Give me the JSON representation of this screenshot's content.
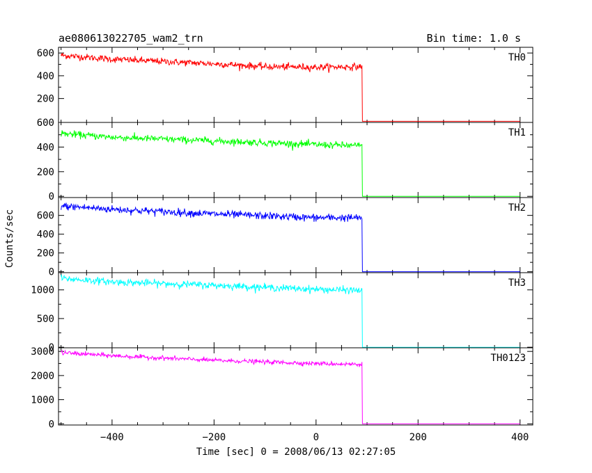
{
  "header": {
    "title": "ae080613022705_wam2_trn",
    "bin_time": "Bin time: 1.0 s"
  },
  "chart_data": {
    "type": "line",
    "xlabel": "Time [sec] 0 = 2008/06/13 02:27:05",
    "ylabel": "Counts/sec",
    "xlim": [
      -505,
      425
    ],
    "x_ticks": [
      -400,
      -200,
      0,
      200,
      400
    ],
    "x_tick_labels": [
      "−400",
      "−200",
      "0",
      "200",
      "400"
    ],
    "drop_time": 90,
    "x_start": -500,
    "x_end": 400,
    "panels": [
      {
        "label": "TH0",
        "color": "#ff0000",
        "ylim": [
          -10,
          650
        ],
        "ticks": [
          200,
          400,
          600
        ],
        "tick_labels": [
          "200",
          "400",
          "600"
        ],
        "trend": [
          [
            -500,
            580
          ],
          [
            -400,
            545
          ],
          [
            -200,
            505
          ],
          [
            -100,
            480
          ],
          [
            0,
            475
          ],
          [
            90,
            480
          ],
          [
            400,
            0
          ]
        ],
        "noise": 15
      },
      {
        "label": "TH1",
        "color": "#00ff00",
        "ylim": [
          -10,
          600
        ],
        "ticks": [
          0,
          200,
          400,
          600
        ],
        "tick_labels": [
          "0",
          "200",
          "400",
          "600"
        ],
        "trend": [
          [
            -500,
            510
          ],
          [
            -400,
            480
          ],
          [
            -200,
            450
          ],
          [
            0,
            420
          ],
          [
            90,
            410
          ],
          [
            400,
            0
          ]
        ],
        "noise": 14
      },
      {
        "label": "TH2",
        "color": "#0000ff",
        "ylim": [
          -10,
          790
        ],
        "ticks": [
          0,
          200,
          400,
          600
        ],
        "tick_labels": [
          "0",
          "200",
          "400",
          "600"
        ],
        "trend": [
          [
            -500,
            700
          ],
          [
            -400,
            665
          ],
          [
            -200,
            615
          ],
          [
            -100,
            595
          ],
          [
            0,
            575
          ],
          [
            90,
            575
          ],
          [
            400,
            0
          ]
        ],
        "noise": 20
      },
      {
        "label": "TH3",
        "color": "#00ffff",
        "ylim": [
          -10,
          1300
        ],
        "ticks": [
          0,
          500,
          1000
        ],
        "tick_labels": [
          "0",
          "500",
          "1000"
        ],
        "trend": [
          [
            -500,
            1200
          ],
          [
            -400,
            1140
          ],
          [
            -200,
            1080
          ],
          [
            0,
            1010
          ],
          [
            90,
            990
          ],
          [
            400,
            0
          ]
        ],
        "noise": 30
      },
      {
        "label": "TH0123",
        "color": "#ff00ff",
        "ylim": [
          -50,
          3150
        ],
        "ticks": [
          0,
          1000,
          2000,
          3000
        ],
        "tick_labels": [
          "0",
          "1000",
          "2000",
          "3000"
        ],
        "trend": [
          [
            -500,
            2950
          ],
          [
            -400,
            2820
          ],
          [
            -200,
            2630
          ],
          [
            0,
            2500
          ],
          [
            90,
            2460
          ],
          [
            400,
            0
          ]
        ],
        "noise": 45
      }
    ]
  }
}
